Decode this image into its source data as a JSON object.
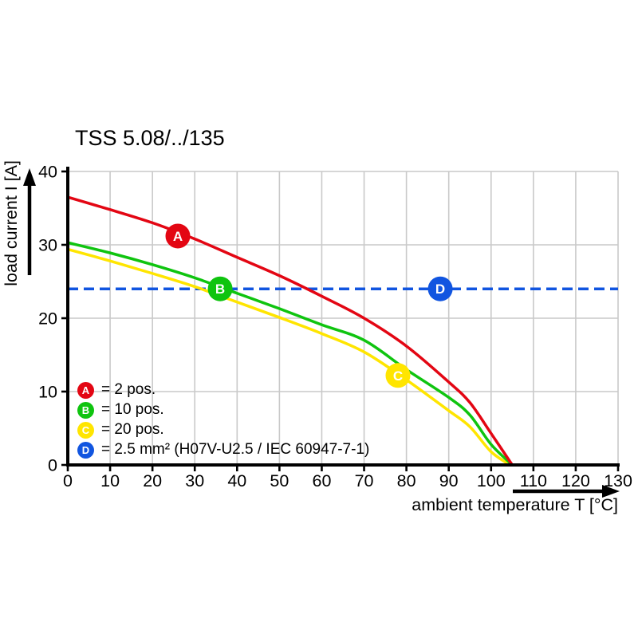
{
  "chart_data": {
    "type": "line",
    "title": "TSS 5.08/../135",
    "xlabel": "ambient temperature T [°C]",
    "ylabel": "load current I [A]",
    "xlim": [
      0,
      130
    ],
    "ylim": [
      0,
      40
    ],
    "xticks": [
      0,
      10,
      20,
      30,
      40,
      50,
      60,
      70,
      80,
      90,
      100,
      110,
      120,
      130
    ],
    "yticks": [
      0,
      10,
      20,
      30,
      40
    ],
    "grid": true,
    "legend_position": "inside-bottom-left",
    "colors": {
      "grid": "#c9c9c9",
      "axis": "#000000",
      "background": "#ffffff",
      "marker_letter": "#ffffff"
    },
    "series": [
      {
        "id": "A",
        "legend_label": "= 2 pos.",
        "color": "#e30613",
        "line_style": "solid",
        "points": [
          [
            0,
            36.5
          ],
          [
            10,
            34.8
          ],
          [
            20,
            33.0
          ],
          [
            30,
            30.8
          ],
          [
            40,
            28.3
          ],
          [
            50,
            25.8
          ],
          [
            60,
            23.0
          ],
          [
            70,
            20.0
          ],
          [
            80,
            16.2
          ],
          [
            90,
            11.3
          ],
          [
            95,
            8.5
          ],
          [
            100,
            4.3
          ],
          [
            105,
            0
          ]
        ],
        "marker_at": [
          26,
          31.2
        ]
      },
      {
        "id": "B",
        "legend_label": "= 10 pos.",
        "color": "#0fc40f",
        "line_style": "solid",
        "points": [
          [
            0,
            30.3
          ],
          [
            10,
            28.9
          ],
          [
            20,
            27.3
          ],
          [
            30,
            25.5
          ],
          [
            40,
            23.4
          ],
          [
            50,
            21.3
          ],
          [
            60,
            19.1
          ],
          [
            70,
            17.0
          ],
          [
            80,
            13.0
          ],
          [
            90,
            9.2
          ],
          [
            95,
            6.8
          ],
          [
            100,
            2.8
          ],
          [
            105,
            0
          ]
        ],
        "marker_at": [
          36,
          24
        ]
      },
      {
        "id": "C",
        "legend_label": "= 20 pos.",
        "color": "#ffe500",
        "line_style": "solid",
        "points": [
          [
            0,
            29.4
          ],
          [
            10,
            27.8
          ],
          [
            20,
            26.1
          ],
          [
            30,
            24.3
          ],
          [
            40,
            22.2
          ],
          [
            50,
            20.1
          ],
          [
            60,
            17.9
          ],
          [
            70,
            15.4
          ],
          [
            80,
            11.6
          ],
          [
            90,
            7.4
          ],
          [
            95,
            5.2
          ],
          [
            100,
            1.8
          ],
          [
            104.5,
            0
          ]
        ],
        "marker_at": [
          78,
          12.2
        ]
      },
      {
        "id": "D",
        "legend_label": "= 2.5 mm² (H07V-U2.5 / IEC 60947-7-1)",
        "color": "#1155e0",
        "line_style": "dashed",
        "points": [
          [
            0,
            24
          ],
          [
            130,
            24
          ]
        ],
        "marker_at": [
          88,
          24
        ]
      }
    ]
  }
}
